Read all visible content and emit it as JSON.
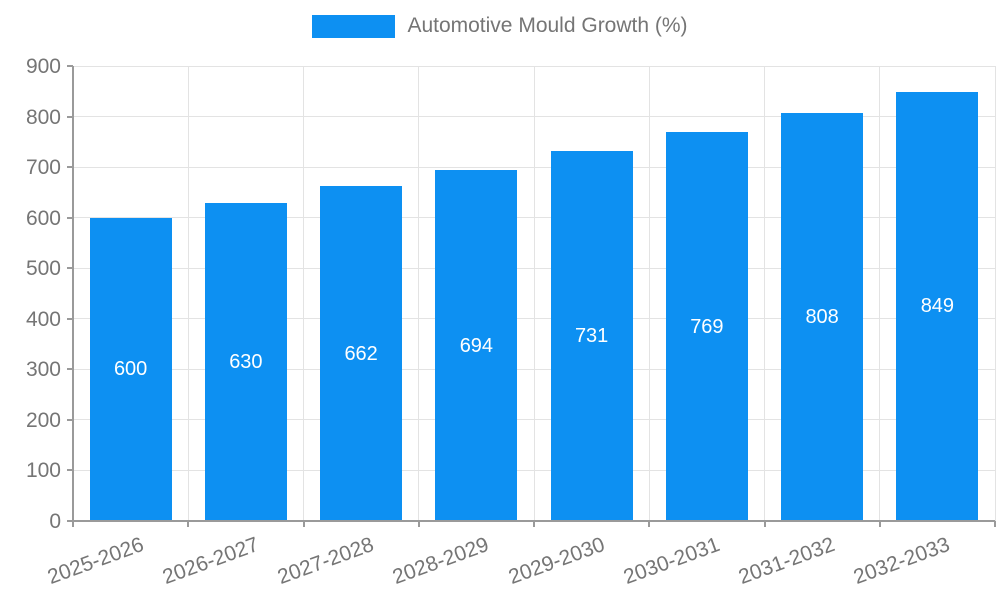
{
  "legend": {
    "label": "Automotive Mould Growth (%)",
    "swatch_color": "#0d90f2"
  },
  "colors": {
    "bar": "#0d90f2",
    "axis": "#9a9a9a",
    "grid": "#e3e3e3",
    "tick_text": "#757575",
    "value_text": "#ffffff"
  },
  "chart_data": {
    "type": "bar",
    "title": "Automotive Mould Growth (%)",
    "categories": [
      "2025-2026",
      "2026-2027",
      "2027-2028",
      "2028-2029",
      "2029-2030",
      "2030-2031",
      "2031-2032",
      "2032-2033"
    ],
    "values": [
      600,
      630,
      662,
      694,
      731,
      769,
      808,
      849
    ],
    "data_labels": [
      "600",
      "630",
      "662",
      "694",
      "731",
      "769",
      "808",
      "849"
    ],
    "xlabel": "",
    "ylabel": "",
    "ylim": [
      0,
      900
    ],
    "y_ticks": [
      0,
      100,
      200,
      300,
      400,
      500,
      600,
      700,
      800,
      900
    ],
    "grid": "on",
    "legend_position": "top-center"
  }
}
